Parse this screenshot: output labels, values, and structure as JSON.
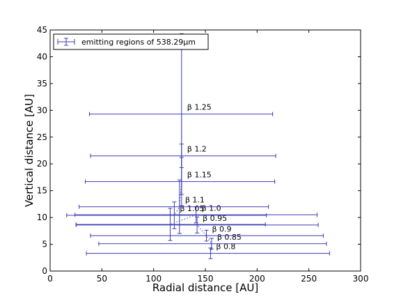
{
  "chart_data": {
    "type": "scatter",
    "xlabel": "Radial distance [AU]",
    "ylabel": "Vertical distance [AU]",
    "xlim": [
      0,
      300
    ],
    "ylim": [
      0,
      45
    ],
    "xticks": [
      0,
      50,
      100,
      150,
      200,
      250,
      300
    ],
    "yticks": [
      0,
      5,
      10,
      15,
      20,
      25,
      30,
      35,
      40,
      45
    ],
    "grid": false,
    "legend_position": "top-left",
    "series": [
      {
        "name": "emitting regions of 538.29μm",
        "color": "#3a3ab4",
        "connector": "dotted",
        "points": [
          {
            "x": 155,
            "y": 3.3,
            "xerr_low": 120,
            "xerr_high": 115,
            "yerr_low": 1.0,
            "yerr_high": 1.0,
            "label": "β 0.8"
          },
          {
            "x": 156,
            "y": 5.1,
            "xerr_low": 109,
            "xerr_high": 111,
            "yerr_low": 1.0,
            "yerr_high": 1.0,
            "label": "β 0.85"
          },
          {
            "x": 151,
            "y": 6.6,
            "xerr_low": 112,
            "xerr_high": 113,
            "yerr_low": 1.0,
            "yerr_high": 1.0,
            "label": "β 0.9"
          },
          {
            "x": 142,
            "y": 8.6,
            "xerr_low": 117,
            "xerr_high": 117,
            "yerr_low": 1.5,
            "yerr_high": 1.5,
            "label": "β 0.95"
          },
          {
            "x": 116,
            "y": 8.7,
            "xerr_low": 91,
            "xerr_high": 92,
            "yerr_low": 3.0,
            "yerr_high": 3.0,
            "label": ""
          },
          {
            "x": 141,
            "y": 10.5,
            "xerr_low": 117,
            "xerr_high": 117,
            "yerr_low": 1.5,
            "yerr_high": 1.5,
            "label": "β 1.0"
          },
          {
            "x": 120,
            "y": 10.4,
            "xerr_low": 104,
            "xerr_high": 89,
            "yerr_low": 2.5,
            "yerr_high": 2.5,
            "label": "β 1.05"
          },
          {
            "x": 125,
            "y": 12.0,
            "xerr_low": 97,
            "xerr_high": 86,
            "yerr_low": 5.0,
            "yerr_high": 5.0,
            "label": "β 1.1"
          },
          {
            "x": 127,
            "y": 16.7,
            "xerr_low": 93,
            "xerr_high": 90,
            "yerr_low": 4.5,
            "yerr_high": 4.5,
            "label": "β 1.15"
          },
          {
            "x": 127,
            "y": 21.5,
            "xerr_low": 88,
            "xerr_high": 91,
            "yerr_low": 2.2,
            "yerr_high": 2.2,
            "label": "β 1.2"
          },
          {
            "x": 127,
            "y": 29.3,
            "xerr_low": 89,
            "xerr_high": 88,
            "yerr_low": 15.0,
            "yerr_high": 15.0,
            "label": "β 1.25"
          }
        ]
      }
    ]
  }
}
